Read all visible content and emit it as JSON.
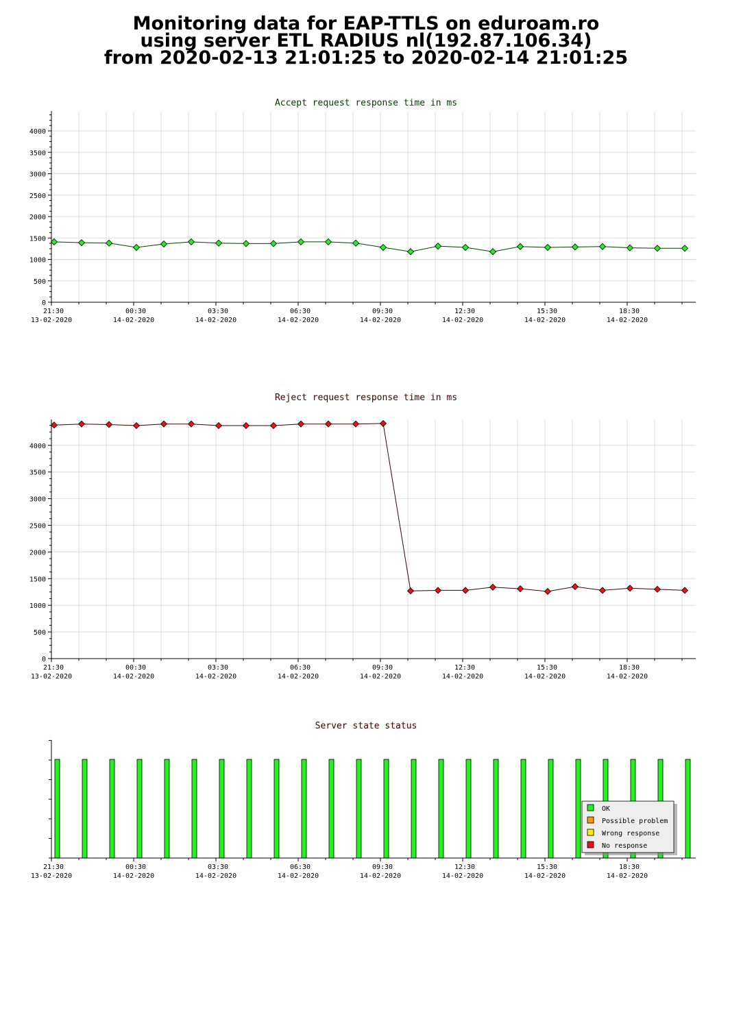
{
  "title": {
    "line1": "Monitoring data for EAP-TTLS on eduroam.ro",
    "line2": "using server ETL RADIUS nl(192.87.106.34)",
    "line3": "from 2020-02-13 21:01:25 to 2020-02-14 21:01:25"
  },
  "chart_data": [
    {
      "type": "line",
      "title": "Accept request response time in ms",
      "title_color": "#004000",
      "marker_color": "#22ee22",
      "line_color": "#004000",
      "xlabel": "",
      "ylabel": "",
      "ylim": [
        0,
        4400
      ],
      "yticks": [
        0,
        500,
        1000,
        1500,
        2000,
        2500,
        3000,
        3500,
        4000
      ],
      "xticks": [
        {
          "time": "21:30",
          "date": "13-02-2020"
        },
        {
          "time": "00:30",
          "date": "14-02-2020"
        },
        {
          "time": "03:30",
          "date": "14-02-2020"
        },
        {
          "time": "06:30",
          "date": "14-02-2020"
        },
        {
          "time": "09:30",
          "date": "14-02-2020"
        },
        {
          "time": "12:30",
          "date": "14-02-2020"
        },
        {
          "time": "15:30",
          "date": "14-02-2020"
        },
        {
          "time": "18:30",
          "date": "14-02-2020"
        }
      ],
      "grid": true,
      "values": [
        1410,
        1390,
        1380,
        1280,
        1360,
        1410,
        1380,
        1370,
        1370,
        1410,
        1410,
        1380,
        1280,
        1180,
        1310,
        1280,
        1180,
        1300,
        1280,
        1290,
        1300,
        1270,
        1260,
        1260
      ]
    },
    {
      "type": "line",
      "title": "Reject request response time in ms",
      "title_color": "#400000",
      "marker_color": "#ee1111",
      "line_color": "#400000",
      "xlabel": "",
      "ylabel": "",
      "ylim": [
        0,
        4400
      ],
      "yticks": [
        0,
        500,
        1000,
        1500,
        2000,
        2500,
        3000,
        3500,
        4000
      ],
      "xticks": [
        {
          "time": "21:30",
          "date": "13-02-2020"
        },
        {
          "time": "00:30",
          "date": "14-02-2020"
        },
        {
          "time": "03:30",
          "date": "14-02-2020"
        },
        {
          "time": "06:30",
          "date": "14-02-2020"
        },
        {
          "time": "09:30",
          "date": "14-02-2020"
        },
        {
          "time": "12:30",
          "date": "14-02-2020"
        },
        {
          "time": "15:30",
          "date": "14-02-2020"
        },
        {
          "time": "18:30",
          "date": "14-02-2020"
        }
      ],
      "grid": true,
      "values": [
        4380,
        4400,
        4390,
        4370,
        4400,
        4400,
        4370,
        4370,
        4370,
        4400,
        4400,
        4400,
        4410,
        1270,
        1280,
        1280,
        1340,
        1310,
        1260,
        1350,
        1280,
        1320,
        1300,
        1280
      ]
    },
    {
      "type": "bar",
      "title": "Server state status",
      "title_color": "#400000",
      "xticks": [
        {
          "time": "21:30",
          "date": "13-02-2020"
        },
        {
          "time": "00:30",
          "date": "14-02-2020"
        },
        {
          "time": "03:30",
          "date": "14-02-2020"
        },
        {
          "time": "06:30",
          "date": "14-02-2020"
        },
        {
          "time": "09:30",
          "date": "14-02-2020"
        },
        {
          "time": "12:30",
          "date": "14-02-2020"
        },
        {
          "time": "15:30",
          "date": "14-02-2020"
        },
        {
          "time": "18:30",
          "date": "14-02-2020"
        }
      ],
      "legend_position": "bottom-right",
      "legend": [
        {
          "label": "OK",
          "color": "#22ee22"
        },
        {
          "label": "Possible problem",
          "color": "#ff9900"
        },
        {
          "label": "Wrong response",
          "color": "#ffee00"
        },
        {
          "label": "No response",
          "color": "#ee1111"
        }
      ],
      "states": [
        "OK",
        "OK",
        "OK",
        "OK",
        "OK",
        "OK",
        "OK",
        "OK",
        "OK",
        "OK",
        "OK",
        "OK",
        "OK",
        "OK",
        "OK",
        "OK",
        "OK",
        "OK",
        "OK",
        "OK",
        "OK",
        "OK",
        "OK",
        "OK"
      ]
    }
  ]
}
